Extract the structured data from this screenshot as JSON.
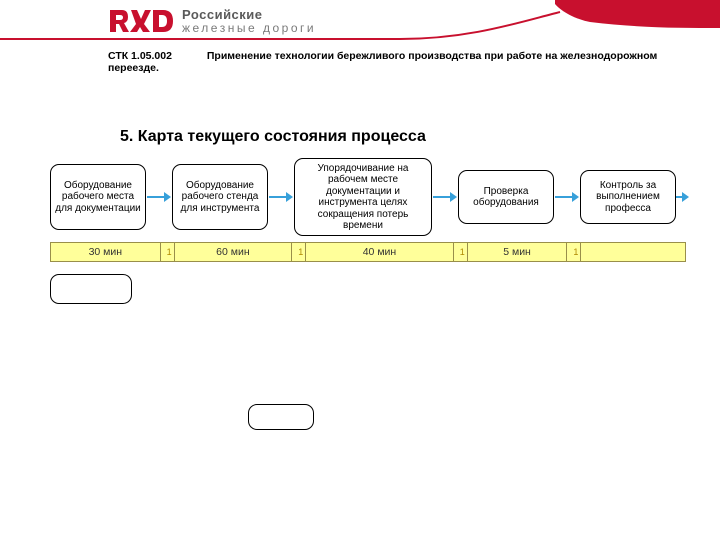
{
  "brand": {
    "name_line1": "Российские",
    "name_line2": "железные дороги",
    "logo_color": "#c8102e",
    "text_color1": "#5a5a5a",
    "text_color2": "#7a7a7a"
  },
  "swoosh": {
    "line_color": "#c8102e",
    "fill_color": "#c8102e"
  },
  "doc": {
    "code": "СТК 1.05.002",
    "desc": "Применение технологии бережливого производства при работе на железнодорожном переезде."
  },
  "title": "5. Карта текущего состояния процесса",
  "flow": {
    "arrow_color": "#37a0da",
    "nodes": [
      {
        "label": "Оборудование рабочего места для документации",
        "width": 96,
        "height": 66
      },
      {
        "label": "Оборудование рабочего стенда для инструмента",
        "width": 96,
        "height": 66
      },
      {
        "label": "Упорядочивание на рабочем месте документации и инструмента целях сокращения потерь времени",
        "width": 138,
        "height": 78
      },
      {
        "label": "Проверка оборудования",
        "width": 96,
        "height": 54
      },
      {
        "label": "Контроль за выполнением професса",
        "width": 96,
        "height": 54
      }
    ]
  },
  "timebar": {
    "bg": "#ffff9a",
    "border": "#998f4a",
    "tick_label": "1",
    "cells": [
      {
        "type": "seg",
        "label": "30 мин",
        "width": 110
      },
      {
        "type": "tick"
      },
      {
        "type": "seg",
        "label": "60 мин",
        "width": 118
      },
      {
        "type": "tick"
      },
      {
        "type": "seg",
        "label": "40 мин",
        "width": 148
      },
      {
        "type": "tick"
      },
      {
        "type": "seg",
        "label": "5 мин",
        "width": 100
      },
      {
        "type": "tick"
      },
      {
        "type": "seg",
        "label": "",
        "width": 104
      }
    ]
  }
}
